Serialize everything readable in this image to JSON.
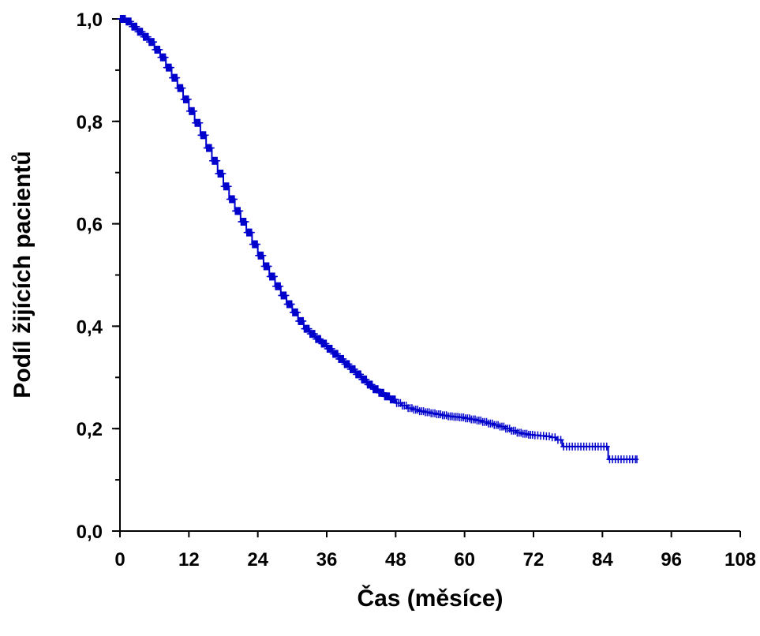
{
  "chart_data": {
    "type": "line",
    "title": "",
    "xlabel": "Čas (měsíce)",
    "ylabel": "Podíl žijících pacientů",
    "xlim": [
      0,
      108
    ],
    "ylim": [
      0,
      1
    ],
    "x_ticks": [
      0,
      12,
      24,
      36,
      48,
      60,
      72,
      84,
      96,
      108
    ],
    "x_tick_labels": [
      "0",
      "12",
      "24",
      "36",
      "48",
      "60",
      "72",
      "84",
      "96",
      "108"
    ],
    "y_ticks": [
      0,
      0.2,
      0.4,
      0.6,
      0.8,
      1.0
    ],
    "y_tick_labels": [
      "0,0",
      "0,2",
      "0,4",
      "0,6",
      "0,8",
      "1,0"
    ],
    "y_minor_step": 0.1,
    "grid": false,
    "legend": "none",
    "series_color": "#0000cc",
    "series": [
      {
        "step": true,
        "x": [
          0,
          1,
          2,
          3,
          4,
          5,
          6,
          7,
          8,
          9,
          10,
          11,
          12,
          13,
          14,
          15,
          16,
          17,
          18,
          19,
          20,
          21,
          22,
          23,
          24,
          25,
          26,
          27,
          28,
          29,
          30,
          31,
          32,
          33,
          34,
          35,
          36,
          37,
          38,
          39,
          40,
          41,
          42,
          43,
          44,
          45,
          46,
          47,
          48,
          49,
          50,
          51,
          52,
          53,
          54,
          55,
          56,
          57,
          58,
          59,
          60,
          61,
          62,
          63,
          64,
          65,
          66,
          67,
          68,
          69,
          70,
          71,
          72,
          73,
          74,
          75,
          76,
          77,
          78,
          79,
          80,
          81,
          82,
          83,
          84,
          85,
          86,
          87,
          88,
          89,
          90
        ],
        "y": [
          1.0,
          0.995,
          0.985,
          0.975,
          0.965,
          0.955,
          0.94,
          0.925,
          0.905,
          0.885,
          0.865,
          0.843,
          0.82,
          0.797,
          0.773,
          0.748,
          0.723,
          0.698,
          0.673,
          0.648,
          0.625,
          0.604,
          0.583,
          0.56,
          0.538,
          0.517,
          0.497,
          0.478,
          0.46,
          0.443,
          0.427,
          0.41,
          0.395,
          0.385,
          0.375,
          0.366,
          0.356,
          0.346,
          0.336,
          0.326,
          0.316,
          0.306,
          0.296,
          0.286,
          0.277,
          0.27,
          0.263,
          0.257,
          0.25,
          0.245,
          0.24,
          0.237,
          0.234,
          0.232,
          0.23,
          0.228,
          0.226,
          0.224,
          0.223,
          0.222,
          0.22,
          0.218,
          0.216,
          0.213,
          0.21,
          0.207,
          0.204,
          0.2,
          0.196,
          0.192,
          0.19,
          0.188,
          0.187,
          0.186,
          0.185,
          0.183,
          0.178,
          0.165,
          0.165,
          0.165,
          0.165,
          0.165,
          0.165,
          0.165,
          0.165,
          0.14,
          0.14,
          0.14,
          0.14,
          0.14,
          0.14
        ]
      }
    ]
  }
}
